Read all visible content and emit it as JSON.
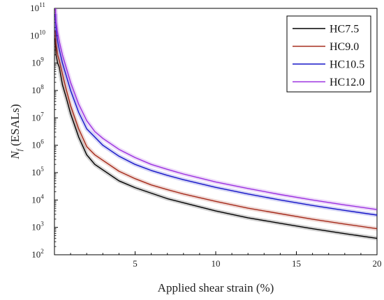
{
  "chart_data": {
    "type": "line",
    "xlabel": "Applied shear strain (%)",
    "ylabel_main": "N",
    "ylabel_sub": "f",
    "ylabel_rest": " (ESALs)",
    "y_scale": "log",
    "xlim": [
      0,
      20
    ],
    "ylim_exponents": [
      2,
      11
    ],
    "x_ticks": [
      5,
      10,
      15,
      20
    ],
    "y_tick_exponents": [
      2,
      3,
      4,
      5,
      6,
      7,
      8,
      9,
      10,
      11
    ],
    "legend_position": "top-right",
    "x": [
      0.05,
      0.1,
      0.2,
      0.3,
      0.5,
      0.75,
      1,
      1.5,
      2,
      2.5,
      3,
      4,
      5,
      6,
      7,
      8,
      10,
      12,
      14,
      16,
      18,
      20
    ],
    "series": [
      {
        "name": "HC7.5",
        "color": "#000000",
        "y_log10": [
          9.9,
          9.3,
          9.0,
          8.85,
          8.2,
          7.7,
          7.15,
          6.3,
          5.65,
          5.3,
          5.1,
          4.7,
          4.45,
          4.25,
          4.05,
          3.9,
          3.6,
          3.35,
          3.15,
          2.95,
          2.77,
          2.6
        ]
      },
      {
        "name": "HC9.0",
        "color": "#a52a1a",
        "y_log10": [
          10.2,
          9.7,
          9.3,
          9.1,
          8.6,
          8.0,
          7.45,
          6.6,
          5.95,
          5.65,
          5.45,
          5.05,
          4.78,
          4.55,
          4.38,
          4.22,
          3.95,
          3.7,
          3.5,
          3.3,
          3.12,
          2.95
        ]
      },
      {
        "name": "HC10.5",
        "color": "#1515c8",
        "y_log10": [
          10.8,
          10.2,
          9.8,
          9.5,
          9.0,
          8.5,
          8.0,
          7.2,
          6.6,
          6.3,
          6.0,
          5.6,
          5.3,
          5.08,
          4.9,
          4.74,
          4.46,
          4.22,
          4.0,
          3.8,
          3.62,
          3.45
        ]
      },
      {
        "name": "HC12.0",
        "color": "#9b30e0",
        "y_log10": [
          11.2,
          10.5,
          10.1,
          9.8,
          9.3,
          8.8,
          8.3,
          7.5,
          6.9,
          6.5,
          6.25,
          5.85,
          5.55,
          5.3,
          5.12,
          4.95,
          4.66,
          4.42,
          4.2,
          4.0,
          3.82,
          3.65
        ]
      }
    ]
  }
}
